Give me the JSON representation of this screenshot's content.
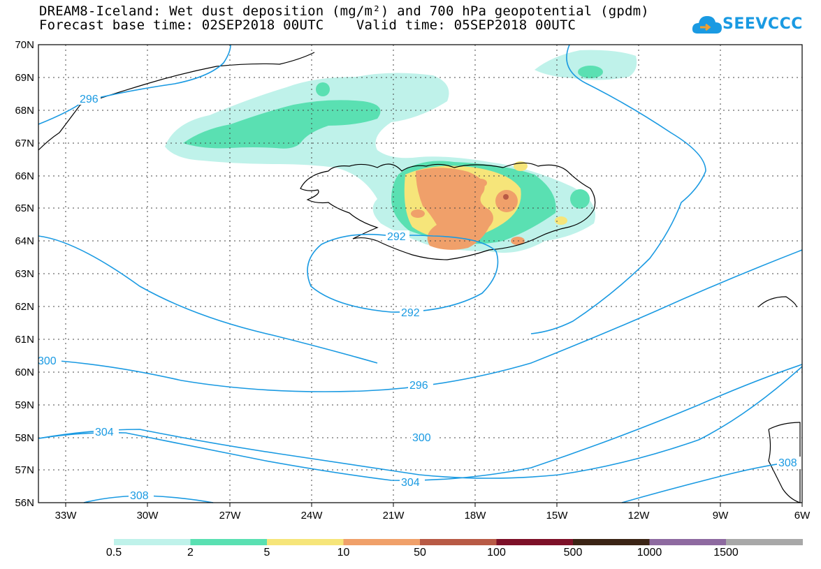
{
  "header": {
    "title_line1": "DREAM8-Iceland: Wet dust deposition (mg/m²) and 700 hPa geopotential (gpdm)",
    "title_line2": "Forecast base time: 02SEP2018 00UTC    Valid time: 05SEP2018 00UTC"
  },
  "logo": {
    "text": "SEEVCCC",
    "icon": "cloud-arrow-icon",
    "color": "#1a9ae2"
  },
  "map": {
    "lat_labels": [
      "70N",
      "69N",
      "68N",
      "67N",
      "66N",
      "65N",
      "64N",
      "63N",
      "62N",
      "61N",
      "60N",
      "59N",
      "58N",
      "57N",
      "56N"
    ],
    "lon_labels": [
      "33W",
      "30W",
      "27W",
      "24W",
      "21W",
      "18W",
      "15W",
      "12W",
      "9W",
      "6W"
    ],
    "lat_range": [
      56,
      70
    ],
    "lon_range": [
      -34.5,
      -6
    ],
    "grid": "dotted",
    "contour_color": "#1a9ae2",
    "contour_labels": [
      "296",
      "292",
      "292",
      "300",
      "296",
      "304",
      "300",
      "304",
      "308",
      "308"
    ]
  },
  "colorbar": {
    "thresholds": [
      "0.5",
      "2",
      "5",
      "10",
      "50",
      "100",
      "500",
      "1000",
      "1500"
    ],
    "colors": [
      "#bff2ea",
      "#5ae0b2",
      "#f6e57a",
      "#f0a06a",
      "#b85a45",
      "#7d1028",
      "#3b2415",
      "#8e6aa0",
      "#a8a8a8"
    ]
  }
}
